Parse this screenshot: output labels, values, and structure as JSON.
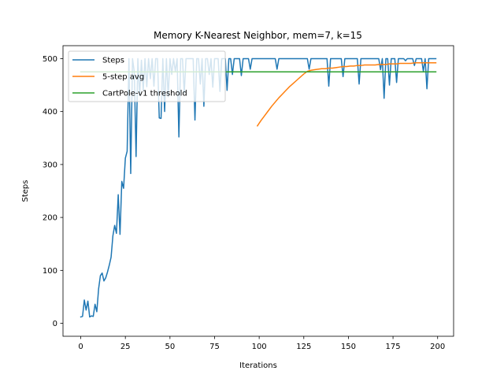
{
  "chart_data": {
    "type": "line",
    "title": "Memory K-Nearest Neighbor, mem=7, k=15",
    "xlabel": "Iterations",
    "ylabel": "Steps",
    "xlim": [
      -9.95,
      208.95
    ],
    "ylim": [
      -24.45,
      524.45
    ],
    "xticks": [
      0,
      25,
      50,
      75,
      100,
      125,
      150,
      175,
      200
    ],
    "yticks": [
      0,
      100,
      200,
      300,
      400,
      500
    ],
    "grid": false,
    "legend_position": "upper-left",
    "series": [
      {
        "name": "Steps",
        "color": "#1f77b4",
        "x_start": 0,
        "values": [
          12,
          13,
          44,
          25,
          42,
          12,
          14,
          13,
          36,
          22,
          65,
          90,
          95,
          80,
          86,
          97,
          110,
          125,
          165,
          185,
          170,
          243,
          168,
          268,
          255,
          312,
          325,
          500,
          283,
          500,
          475,
          315,
          500,
          430,
          497,
          440,
          500,
          447,
          500,
          462,
          500,
          448,
          500,
          500,
          388,
          387,
          500,
          400,
          500,
          428,
          500,
          470,
          500,
          476,
          500,
          352,
          500,
          500,
          435,
          500,
          500,
          500,
          500,
          500,
          384,
          500,
          500,
          452,
          500,
          410,
          500,
          500,
          470,
          500,
          446,
          500,
          500,
          500,
          438,
          500,
          500,
          500,
          440,
          500,
          500,
          470,
          500,
          500,
          500,
          500,
          468,
          500,
          500,
          500,
          500,
          480,
          500,
          500,
          500,
          500,
          500,
          500,
          500,
          500,
          500,
          500,
          500,
          500,
          500,
          500,
          480,
          500,
          500,
          500,
          500,
          500,
          500,
          500,
          500,
          500,
          500,
          500,
          500,
          500,
          500,
          500,
          500,
          500,
          480,
          500,
          500,
          500,
          500,
          500,
          500,
          500,
          500,
          500,
          500,
          448,
          500,
          500,
          500,
          500,
          500,
          500,
          500,
          466,
          500,
          500,
          500,
          500,
          500,
          500,
          500,
          500,
          452,
          500,
          500,
          500,
          500,
          500,
          500,
          500,
          500,
          500,
          500,
          500,
          479,
          500,
          425,
          500,
          500,
          450,
          500,
          500,
          500,
          455,
          500,
          500,
          500,
          500,
          496,
          500,
          500,
          500,
          500,
          487,
          500,
          500,
          500,
          500,
          476,
          500,
          443,
          500,
          500,
          500,
          500,
          500
        ]
      },
      {
        "name": "5-step avg",
        "color": "#ff7f0e",
        "x": [
          99,
          101,
          103,
          105,
          107,
          109,
          111,
          113,
          115,
          117,
          119,
          121,
          123,
          125,
          127,
          129,
          131,
          133,
          135,
          137,
          139,
          141,
          143,
          145,
          147,
          149,
          151,
          153,
          155,
          157,
          159,
          161,
          163,
          165,
          167,
          169,
          171,
          173,
          175,
          177,
          179,
          181,
          183,
          185,
          187,
          189,
          191,
          193,
          195,
          197,
          199
        ],
        "values": [
          373,
          383,
          392,
          401,
          410,
          418,
          426,
          433,
          440,
          447,
          453,
          459,
          465,
          471,
          476,
          478,
          479,
          480,
          481,
          481,
          482,
          482,
          483,
          484,
          485,
          485,
          486,
          486,
          487,
          487,
          488,
          488,
          488,
          488,
          489,
          489,
          489,
          490,
          490,
          490,
          491,
          491,
          491,
          491,
          492,
          492,
          492,
          492,
          492,
          492,
          492
        ]
      },
      {
        "name": "CartPole-v1 threshold",
        "color": "#2ca02c",
        "x": [
          0,
          199
        ],
        "values": [
          475,
          475
        ]
      }
    ]
  }
}
